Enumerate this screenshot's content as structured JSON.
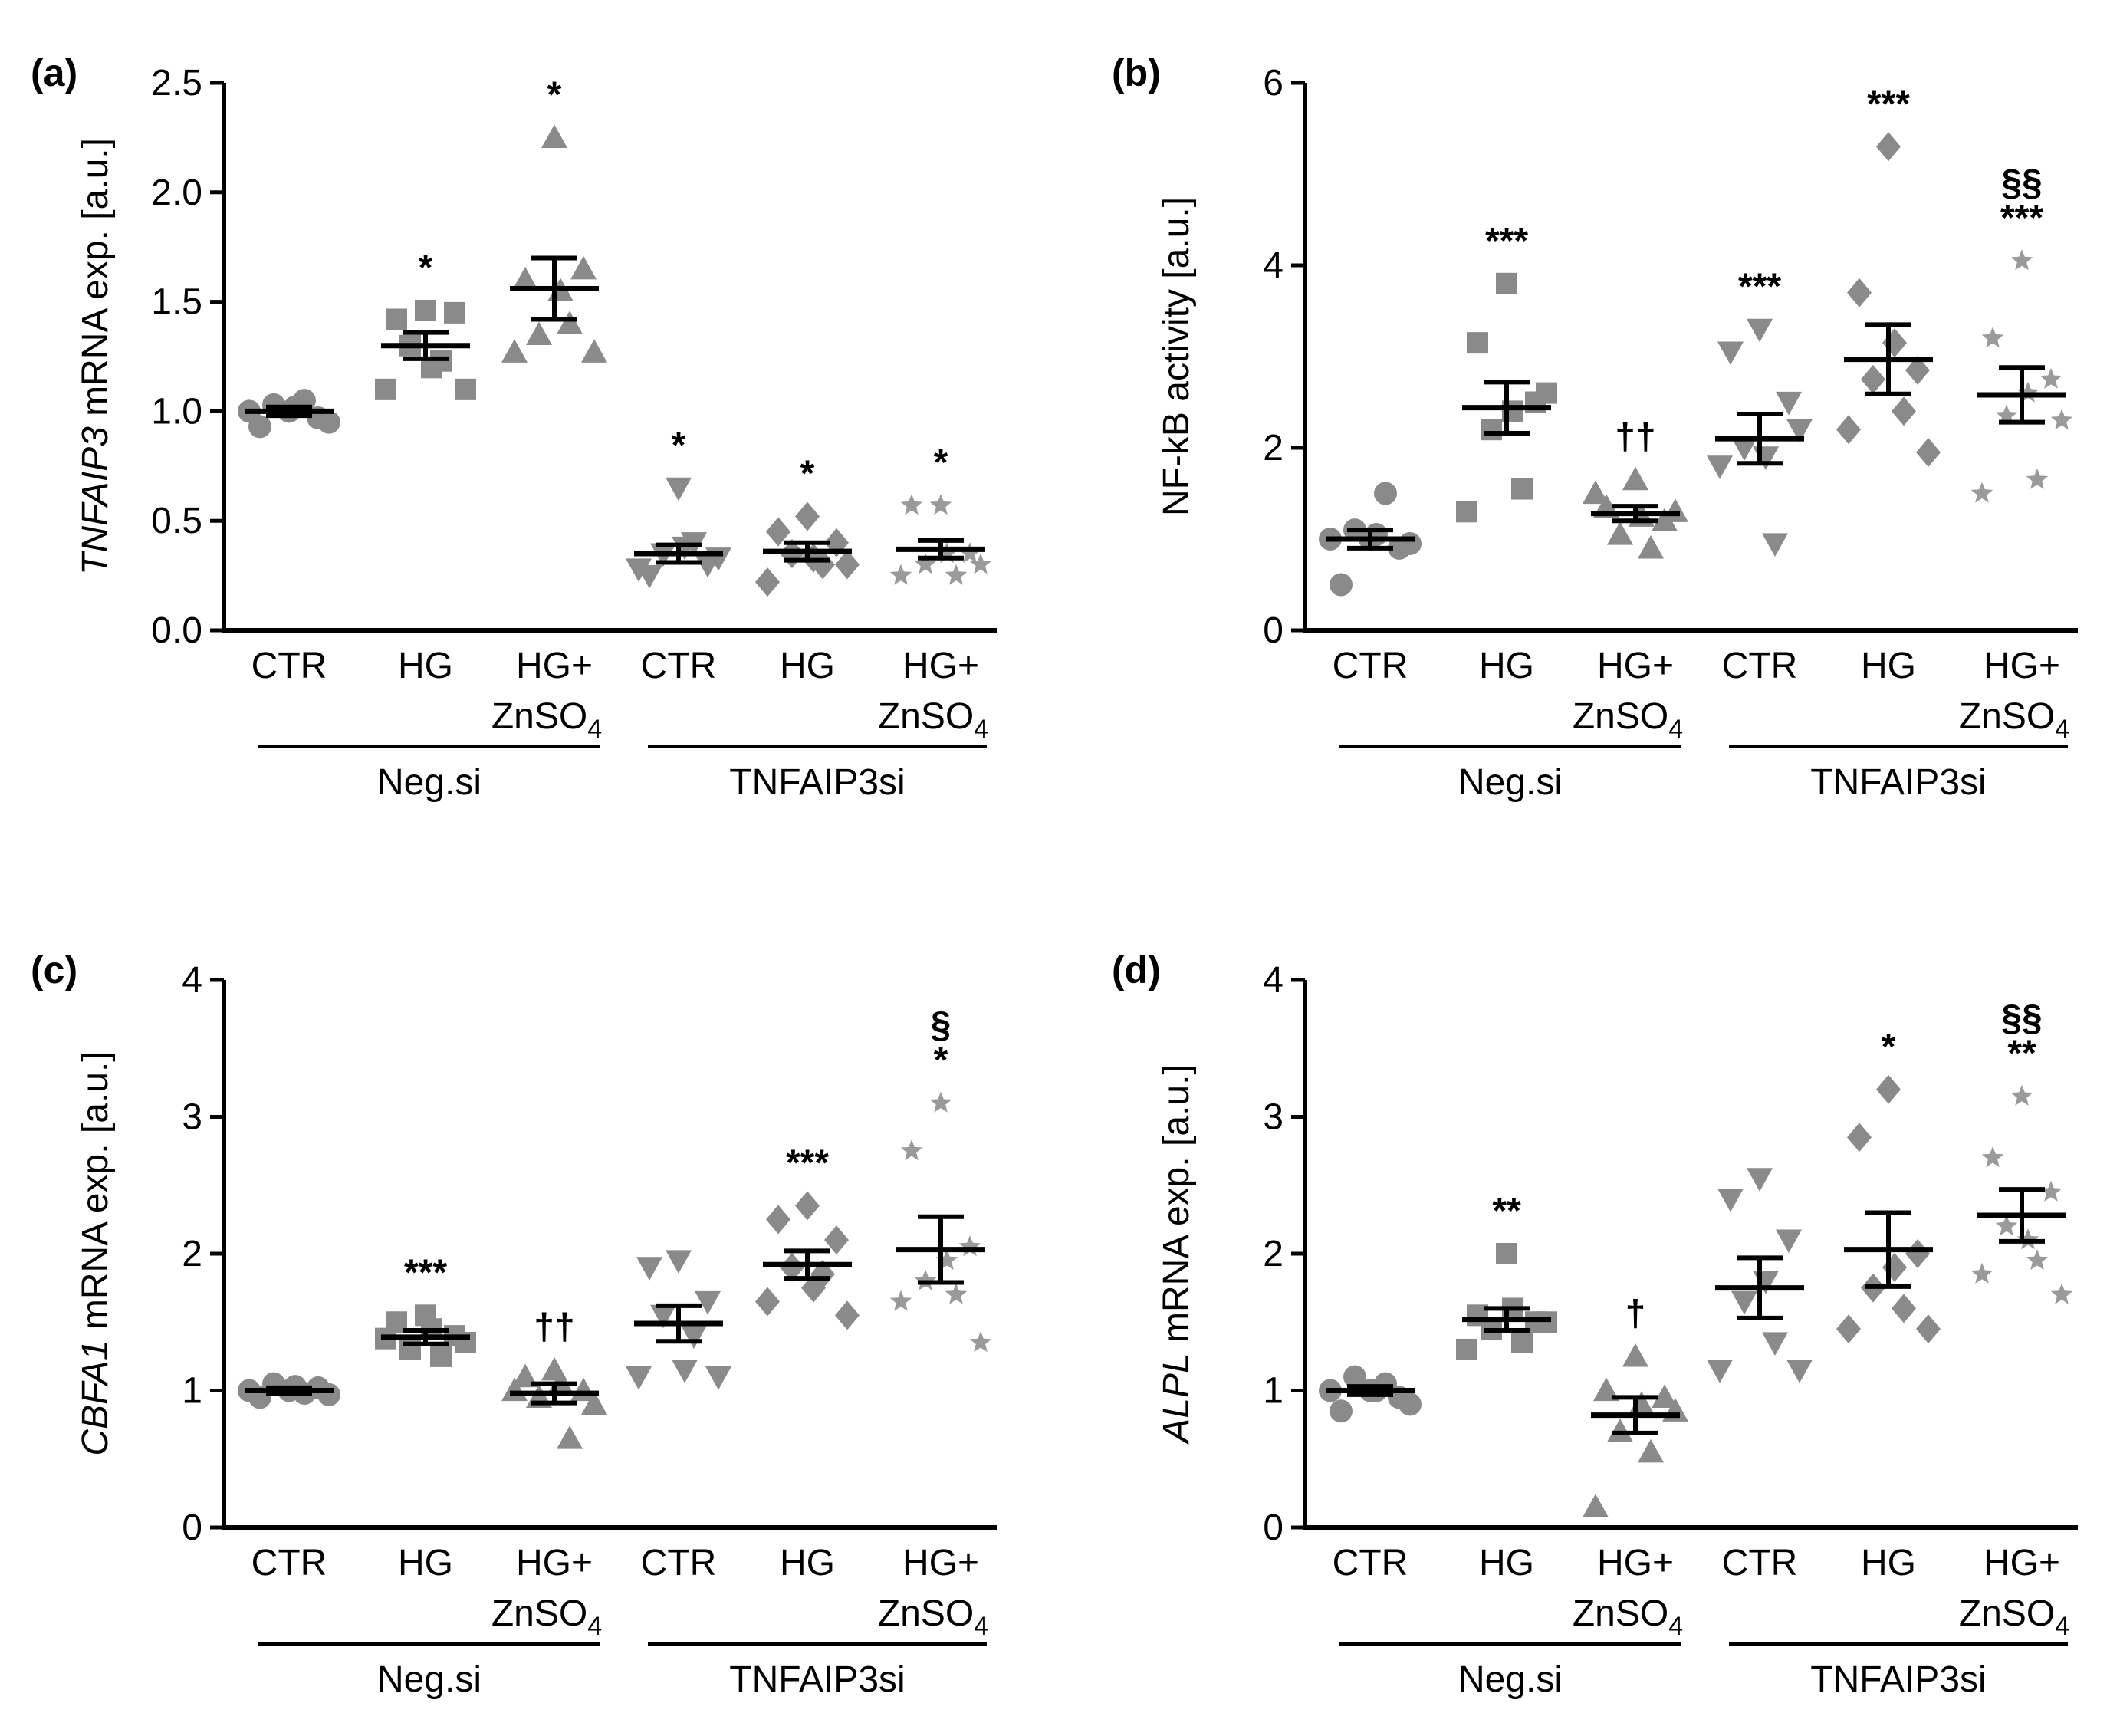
{
  "figure": {
    "groups": [
      "Neg.si",
      "TNFAIP3si"
    ],
    "categories": [
      "CTR",
      "HG",
      "HG+",
      "CTR",
      "HG",
      "HG+"
    ],
    "category_sub": [
      "",
      "",
      "ZnSO",
      "",
      "",
      "ZnSO"
    ],
    "subscript": "4",
    "colors": {
      "axis": "#000000",
      "points": "#8a8a8a",
      "star_points": "#9a9a9a",
      "mean_bar": "#000000"
    },
    "markers": [
      "circle",
      "square",
      "triangle-up",
      "triangle-down",
      "diamond",
      "star"
    ]
  },
  "chart_data": [
    {
      "id": "a",
      "panel_label": "(a)",
      "type": "scatter",
      "ylabel_italic": "TNFAIP3",
      "ylabel_rest": " mRNA exp. [a.u.]",
      "yticks": [
        "0.0",
        "0.5",
        "1.0",
        "1.5",
        "2.0",
        "2.5"
      ],
      "ylim": [
        0,
        2.5
      ],
      "points": [
        [
          1.0,
          0.93,
          0.97,
          1.03,
          1.05,
          1.0,
          0.95,
          1.02
        ],
        [
          1.46,
          1.42,
          1.45,
          1.3,
          1.23,
          1.1,
          1.1,
          1.2
        ],
        [
          2.25,
          1.6,
          1.65,
          1.35,
          1.4,
          1.27,
          1.27,
          1.55
        ],
        [
          0.65,
          0.25,
          0.3,
          0.35,
          0.4,
          0.28,
          0.33,
          0.38
        ],
        [
          0.52,
          0.45,
          0.4,
          0.35,
          0.3,
          0.22,
          0.3,
          0.33
        ],
        [
          0.57,
          0.57,
          0.35,
          0.3,
          0.25,
          0.25,
          0.3,
          0.35
        ]
      ],
      "means": [
        1.0,
        1.3,
        1.56,
        0.35,
        0.36,
        0.37
      ],
      "sem": [
        0.02,
        0.06,
        0.14,
        0.04,
        0.04,
        0.04
      ],
      "significance": [
        {
          "col": 1,
          "lines": [
            "*"
          ]
        },
        {
          "col": 2,
          "lines": [
            "*"
          ]
        },
        {
          "col": 3,
          "lines": [
            "*"
          ]
        },
        {
          "col": 4,
          "lines": [
            "*"
          ]
        },
        {
          "col": 5,
          "lines": [
            "*"
          ]
        }
      ]
    },
    {
      "id": "b",
      "panel_label": "(b)",
      "type": "scatter",
      "ylabel_italic": "",
      "ylabel_rest": "NF-kB activity [a.u.]",
      "yticks": [
        "0",
        "2",
        "4",
        "6"
      ],
      "ylim": [
        0,
        6
      ],
      "points": [
        [
          1.0,
          0.5,
          0.9,
          1.1,
          1.5,
          1.0,
          0.95,
          1.05
        ],
        [
          3.8,
          3.15,
          2.5,
          2.2,
          1.55,
          1.3,
          2.6,
          2.4
        ],
        [
          1.65,
          1.35,
          1.2,
          1.05,
          0.9,
          1.5,
          1.3,
          1.25
        ],
        [
          3.3,
          3.05,
          2.5,
          2.0,
          0.95,
          1.8,
          2.2,
          1.9
        ],
        [
          5.3,
          3.7,
          2.85,
          2.75,
          2.4,
          2.2,
          1.95,
          3.15
        ],
        [
          4.05,
          3.2,
          2.75,
          2.35,
          1.65,
          1.5,
          2.3,
          2.6
        ]
      ],
      "means": [
        1.0,
        2.44,
        1.28,
        2.1,
        2.97,
        2.58
      ],
      "sem": [
        0.1,
        0.28,
        0.08,
        0.27,
        0.38,
        0.3
      ],
      "significance": [
        {
          "col": 1,
          "lines": [
            "***"
          ]
        },
        {
          "col": 2,
          "lines": [
            "††"
          ]
        },
        {
          "col": 3,
          "lines": [
            "***"
          ]
        },
        {
          "col": 4,
          "lines": [
            "***"
          ]
        },
        {
          "col": 5,
          "lines": [
            "§§",
            "***"
          ]
        }
      ]
    },
    {
      "id": "c",
      "panel_label": "(c)",
      "type": "scatter",
      "ylabel_italic": "CBFA1",
      "ylabel_rest": " mRNA exp. [a.u.]",
      "yticks": [
        "0",
        "1",
        "2",
        "3",
        "4"
      ],
      "ylim": [
        0,
        4
      ],
      "points": [
        [
          1.0,
          0.95,
          1.02,
          1.05,
          0.98,
          1.0,
          0.97,
          1.03
        ],
        [
          1.55,
          1.5,
          1.4,
          1.3,
          1.25,
          1.38,
          1.35,
          1.45
        ],
        [
          1.15,
          1.1,
          1.0,
          0.95,
          0.65,
          1.0,
          0.9,
          1.05
        ],
        [
          1.95,
          1.9,
          1.65,
          1.55,
          1.4,
          1.1,
          1.1,
          1.15
        ],
        [
          2.35,
          2.25,
          2.1,
          1.9,
          1.85,
          1.65,
          1.55,
          1.75
        ],
        [
          3.1,
          2.75,
          2.05,
          1.8,
          1.7,
          1.65,
          1.35,
          1.95
        ]
      ],
      "means": [
        1.0,
        1.39,
        0.98,
        1.49,
        1.92,
        2.03
      ],
      "sem": [
        0.02,
        0.05,
        0.07,
        0.13,
        0.1,
        0.24
      ],
      "significance": [
        {
          "col": 1,
          "lines": [
            "***"
          ]
        },
        {
          "col": 2,
          "lines": [
            "††"
          ]
        },
        {
          "col": 4,
          "lines": [
            "***"
          ]
        },
        {
          "col": 5,
          "lines": [
            "§",
            "*"
          ]
        }
      ]
    },
    {
      "id": "d",
      "panel_label": "(d)",
      "type": "scatter",
      "ylabel_italic": "ALPL",
      "ylabel_rest": " mRNA exp. [a.u.]",
      "yticks": [
        "0",
        "1",
        "2",
        "3",
        "4"
      ],
      "ylim": [
        0,
        4
      ],
      "points": [
        [
          1.0,
          0.85,
          0.95,
          1.1,
          1.05,
          1.0,
          0.9,
          1.0
        ],
        [
          2.0,
          1.55,
          1.5,
          1.45,
          1.35,
          1.3,
          1.5,
          1.6
        ],
        [
          1.25,
          1.0,
          0.95,
          0.7,
          0.55,
          0.15,
          0.85,
          0.9
        ],
        [
          2.55,
          2.4,
          2.1,
          1.65,
          1.35,
          1.15,
          1.15,
          1.8
        ],
        [
          3.2,
          2.85,
          2.0,
          1.75,
          1.6,
          1.45,
          1.45,
          1.9
        ],
        [
          3.15,
          2.7,
          2.45,
          2.2,
          1.95,
          1.85,
          1.7,
          2.1
        ]
      ],
      "means": [
        1.0,
        1.52,
        0.82,
        1.75,
        2.03,
        2.28
      ],
      "sem": [
        0.03,
        0.08,
        0.13,
        0.22,
        0.27,
        0.19
      ],
      "significance": [
        {
          "col": 1,
          "lines": [
            "**"
          ]
        },
        {
          "col": 2,
          "lines": [
            "†"
          ]
        },
        {
          "col": 4,
          "lines": [
            "*"
          ]
        },
        {
          "col": 5,
          "lines": [
            "§§",
            "**"
          ]
        }
      ]
    }
  ]
}
